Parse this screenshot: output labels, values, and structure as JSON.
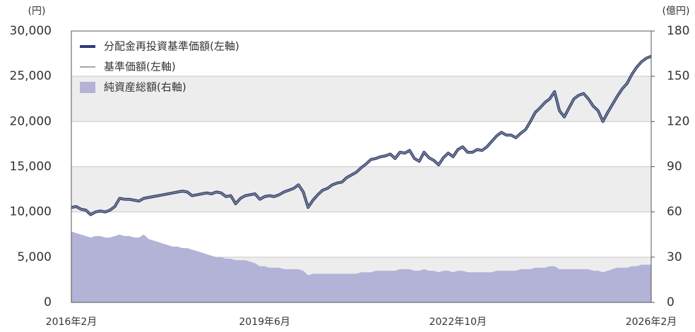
{
  "chart_data": {
    "type": "line",
    "y_unit": "(円)",
    "y2_unit": "(億円)",
    "x": [
      "2016-02",
      "2016-03",
      "2016-04",
      "2016-05",
      "2016-06",
      "2016-07",
      "2016-08",
      "2016-09",
      "2016-10",
      "2016-11",
      "2016-12",
      "2017-01",
      "2017-02",
      "2017-03",
      "2017-04",
      "2017-05",
      "2017-06",
      "2017-07",
      "2017-08",
      "2017-09",
      "2017-10",
      "2017-11",
      "2017-12",
      "2018-01",
      "2018-02",
      "2018-03",
      "2018-04",
      "2018-05",
      "2018-06",
      "2018-07",
      "2018-08",
      "2018-09",
      "2018-10",
      "2018-11",
      "2018-12",
      "2019-01",
      "2019-02",
      "2019-03",
      "2019-04",
      "2019-05",
      "2019-06",
      "2019-07",
      "2019-08",
      "2019-09",
      "2019-10",
      "2019-11",
      "2019-12",
      "2020-01",
      "2020-02",
      "2020-03",
      "2020-04",
      "2020-05",
      "2020-06",
      "2020-07",
      "2020-08",
      "2020-09",
      "2020-10",
      "2020-11",
      "2020-12",
      "2021-01",
      "2021-02",
      "2021-03",
      "2021-04",
      "2021-05",
      "2021-06",
      "2021-07",
      "2021-08",
      "2021-09",
      "2021-10",
      "2021-11",
      "2021-12",
      "2022-01",
      "2022-02",
      "2022-03",
      "2022-04",
      "2022-05",
      "2022-06",
      "2022-07",
      "2022-08",
      "2022-09",
      "2022-10",
      "2022-11",
      "2022-12",
      "2023-01",
      "2023-02",
      "2023-03",
      "2023-04",
      "2023-05",
      "2023-06",
      "2023-07",
      "2023-08",
      "2023-09",
      "2023-10",
      "2023-11",
      "2023-12",
      "2024-01",
      "2024-02",
      "2024-03",
      "2024-04",
      "2024-05",
      "2024-06",
      "2024-07",
      "2024-08",
      "2024-09",
      "2024-10",
      "2024-11",
      "2024-12",
      "2025-01",
      "2025-02",
      "2025-03",
      "2025-04",
      "2025-05",
      "2025-06",
      "2025-07",
      "2025-08",
      "2025-09",
      "2025-10",
      "2025-11",
      "2025-12",
      "2026-01",
      "2026-02"
    ],
    "xticks": [
      {
        "value": "2016-02",
        "label": "2016年2月"
      },
      {
        "value": "2019-06",
        "label": "2019年6月"
      },
      {
        "value": "2022-10",
        "label": "2022年10月"
      },
      {
        "value": "2026-02",
        "label": "2026年2月"
      }
    ],
    "ylim": [
      0,
      30000
    ],
    "yticks": [
      0,
      {
        "value": 5000,
        "label": "5,000"
      },
      {
        "value": 10000,
        "label": "10,000"
      },
      {
        "value": 15000,
        "label": "15,000"
      },
      {
        "value": 20000,
        "label": "20,000"
      },
      {
        "value": 25000,
        "label": "25,000"
      },
      {
        "value": 30000,
        "label": "30,000"
      }
    ],
    "y2lim": [
      0,
      180
    ],
    "y2ticks": [
      0,
      30,
      60,
      90,
      120,
      150,
      180
    ],
    "bands": true,
    "series": [
      {
        "name": "純資産総額(右軸)",
        "type": "area",
        "axis": "y2",
        "color": "#b2b3d6",
        "values": [
          47,
          46,
          45,
          44,
          43,
          44,
          44,
          43,
          43,
          44,
          45,
          44,
          44,
          43,
          43,
          45,
          42,
          41,
          40,
          39,
          38,
          37,
          37,
          36,
          36,
          35,
          34,
          33,
          32,
          31,
          30,
          30,
          29,
          29,
          28,
          28,
          28,
          27,
          26,
          24,
          24,
          23,
          23,
          23,
          22,
          22,
          22,
          22,
          21,
          18,
          19,
          19,
          19,
          19,
          19,
          19,
          19,
          19,
          19,
          19,
          20,
          20,
          20,
          21,
          21,
          21,
          21,
          21,
          22,
          22,
          22,
          21,
          21,
          22,
          21,
          21,
          20,
          21,
          21,
          20,
          21,
          21,
          20,
          20,
          20,
          20,
          20,
          20,
          21,
          21,
          21,
          21,
          21,
          22,
          22,
          22,
          23,
          23,
          23,
          24,
          24,
          22,
          22,
          22,
          22,
          22,
          22,
          22,
          21,
          21,
          20,
          21,
          22,
          23,
          23,
          23,
          24,
          24,
          25,
          25,
          25
        ]
      },
      {
        "name": "分配金再投資基準価額(左軸)",
        "type": "line",
        "color": "#2c3d78",
        "width": 4,
        "values": [
          10500,
          10600,
          10300,
          10200,
          9700,
          10000,
          10100,
          10000,
          10200,
          10600,
          11500,
          11400,
          11400,
          11300,
          11200,
          11500,
          11600,
          11700,
          11800,
          11900,
          12000,
          12100,
          12200,
          12300,
          12200,
          11800,
          11900,
          12000,
          12100,
          12000,
          12200,
          12100,
          11700,
          11800,
          10900,
          11500,
          11800,
          11900,
          12000,
          11400,
          11700,
          11800,
          11700,
          11900,
          12200,
          12400,
          12600,
          13000,
          12200,
          10500,
          11300,
          11900,
          12400,
          12600,
          13000,
          13200,
          13300,
          13800,
          14100,
          14400,
          14900,
          15300,
          15800,
          15900,
          16100,
          16200,
          16400,
          15900,
          16600,
          16500,
          16800,
          15900,
          15600,
          16600,
          16000,
          15700,
          15200,
          16000,
          16500,
          16100,
          16900,
          17200,
          16600,
          16600,
          16900,
          16800,
          17200,
          17800,
          18400,
          18800,
          18500,
          18500,
          18200,
          18700,
          19100,
          20000,
          21000,
          21500,
          22100,
          22500,
          23300,
          21200,
          20500,
          21500,
          22500,
          22900,
          23100,
          22500,
          21700,
          21200,
          20000,
          21000,
          21900,
          22800,
          23600,
          24200,
          25200,
          26000,
          26600,
          27000,
          27200
        ]
      },
      {
        "name": "基準価額(左軸)",
        "type": "line",
        "color": "#8a8a8a",
        "width": 1.5,
        "values": [
          10500,
          10600,
          10300,
          10200,
          9700,
          10000,
          10100,
          10000,
          10200,
          10600,
          11500,
          11400,
          11400,
          11300,
          11200,
          11500,
          11600,
          11700,
          11800,
          11900,
          12000,
          12100,
          12200,
          12300,
          12200,
          11800,
          11900,
          12000,
          12100,
          12000,
          12200,
          12100,
          11700,
          11800,
          10900,
          11500,
          11800,
          11900,
          12000,
          11400,
          11700,
          11800,
          11700,
          11900,
          12200,
          12400,
          12600,
          13000,
          12200,
          10500,
          11300,
          11900,
          12400,
          12600,
          13000,
          13200,
          13300,
          13800,
          14100,
          14400,
          14900,
          15300,
          15800,
          15900,
          16100,
          16200,
          16400,
          15900,
          16600,
          16500,
          16800,
          15900,
          15600,
          16600,
          16000,
          15700,
          15200,
          16000,
          16500,
          16100,
          16900,
          17200,
          16600,
          16600,
          16900,
          16800,
          17200,
          17800,
          18400,
          18800,
          18500,
          18500,
          18200,
          18700,
          19100,
          20000,
          21000,
          21500,
          22100,
          22500,
          23300,
          21200,
          20500,
          21500,
          22500,
          22900,
          23100,
          22500,
          21700,
          21200,
          20000,
          21000,
          21900,
          22800,
          23600,
          24200,
          25200,
          26000,
          26600,
          27000,
          27200
        ]
      }
    ]
  }
}
